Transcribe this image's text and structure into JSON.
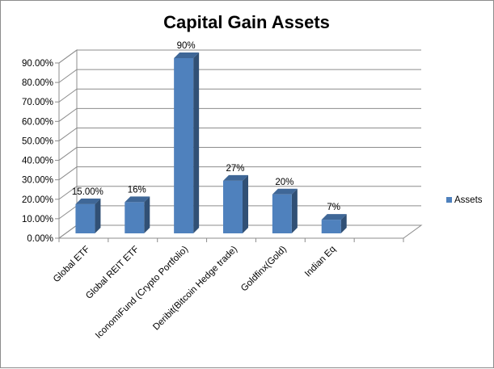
{
  "chart_data": {
    "type": "bar",
    "title": "Capital Gain Assets",
    "categories": [
      "Global ETF",
      "Global REIT ETF",
      "IconomiFund (Crypto Portfolio)",
      "Deribit(Bitcoin Hedge trade)",
      "Goldfinx(Gold)",
      "Indian Eq",
      ""
    ],
    "series": [
      {
        "name": "Assets",
        "values": [
          15,
          16,
          90,
          27,
          20,
          7,
          null
        ],
        "data_labels": [
          "15.00%",
          "16%",
          "90%",
          "27%",
          "20%",
          "7%",
          ""
        ],
        "color": "#4f81bd"
      }
    ],
    "ylim": [
      0,
      90
    ],
    "yticks": [
      0,
      10,
      20,
      30,
      40,
      50,
      60,
      70,
      80,
      90
    ],
    "ytick_labels": [
      "0.00%",
      "10.00%",
      "20.00%",
      "30.00%",
      "40.00%",
      "50.00%",
      "60.00%",
      "70.00%",
      "80.00%",
      "90.00%"
    ],
    "grid": true,
    "style": "3d-column",
    "legend_position": "right"
  }
}
